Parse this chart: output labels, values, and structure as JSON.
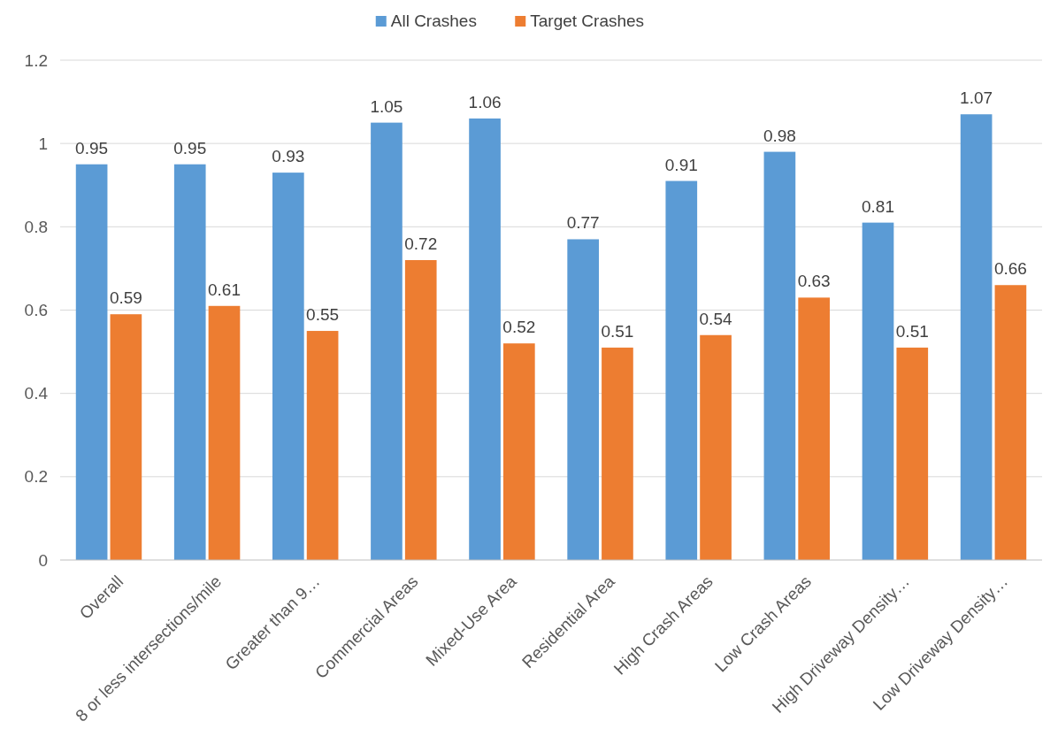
{
  "chart_data": {
    "type": "bar",
    "categories": [
      "Overall",
      "8 or less intersections/mile",
      "Greater than 9…",
      "Commercial Areas",
      "Mixed-Use Area",
      "Residential Area",
      "High Crash Areas",
      "Low Crash Areas",
      "High Driveway Density…",
      "Low Driveway Density…"
    ],
    "series": [
      {
        "name": "All Crashes",
        "color": "#5b9bd5",
        "values": [
          0.95,
          0.95,
          0.93,
          1.05,
          1.06,
          0.77,
          0.91,
          0.98,
          0.81,
          1.07
        ]
      },
      {
        "name": "Target Crashes",
        "color": "#ed7d31",
        "values": [
          0.59,
          0.61,
          0.55,
          0.72,
          0.52,
          0.51,
          0.54,
          0.63,
          0.51,
          0.66
        ]
      }
    ],
    "ylim": [
      0,
      1.2
    ],
    "yticks": [
      0,
      0.2,
      0.4,
      0.6,
      0.8,
      1,
      1.2
    ],
    "grid": "y",
    "legend": "top",
    "data_labels": true
  }
}
